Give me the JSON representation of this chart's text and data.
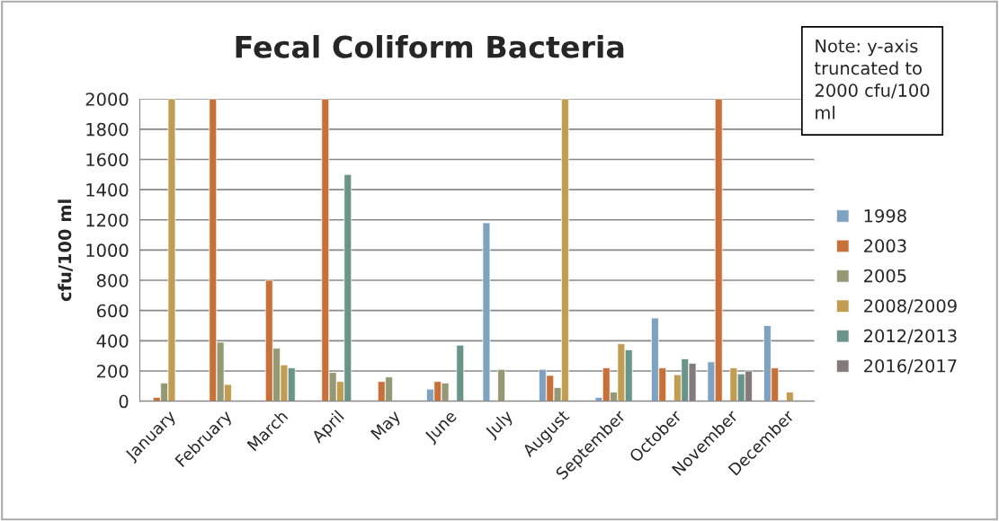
{
  "chart_data": {
    "type": "bar",
    "title": "Fecal Coliform Bacteria",
    "ylabel": "cfu/100 ml",
    "categories": [
      "January",
      "February",
      "March",
      "April",
      "May",
      "June",
      "July",
      "August",
      "September",
      "October",
      "November",
      "December"
    ],
    "series": [
      {
        "name": "1998",
        "color": "#7fa2c0",
        "values": [
          null,
          null,
          null,
          null,
          null,
          80,
          1180,
          210,
          25,
          550,
          260,
          500
        ]
      },
      {
        "name": "2003",
        "color": "#c8703a",
        "values": [
          25,
          2000,
          800,
          2000,
          130,
          130,
          null,
          170,
          220,
          220,
          2000,
          220
        ]
      },
      {
        "name": "2005",
        "color": "#949874",
        "values": [
          120,
          390,
          350,
          190,
          160,
          120,
          210,
          90,
          60,
          null,
          null,
          null
        ]
      },
      {
        "name": "2008/2009",
        "color": "#c09d50",
        "values": [
          2000,
          110,
          240,
          130,
          null,
          null,
          null,
          2000,
          380,
          175,
          220,
          60
        ]
      },
      {
        "name": "2012/2013",
        "color": "#6a9389",
        "values": [
          null,
          null,
          220,
          1500,
          null,
          370,
          null,
          null,
          340,
          280,
          180,
          null
        ]
      },
      {
        "name": "2016/2017",
        "color": "#857a7a",
        "values": [
          null,
          null,
          null,
          null,
          null,
          null,
          null,
          null,
          null,
          250,
          200,
          null
        ]
      }
    ],
    "ylim": [
      0,
      2000
    ],
    "yticks": [
      0,
      200,
      400,
      600,
      800,
      1000,
      1200,
      1400,
      1600,
      1800,
      2000
    ],
    "grid": "y",
    "legend": "right",
    "annotations": [
      "Note: y-axis\ntruncated to\n2000 cfu/100\nml"
    ]
  }
}
